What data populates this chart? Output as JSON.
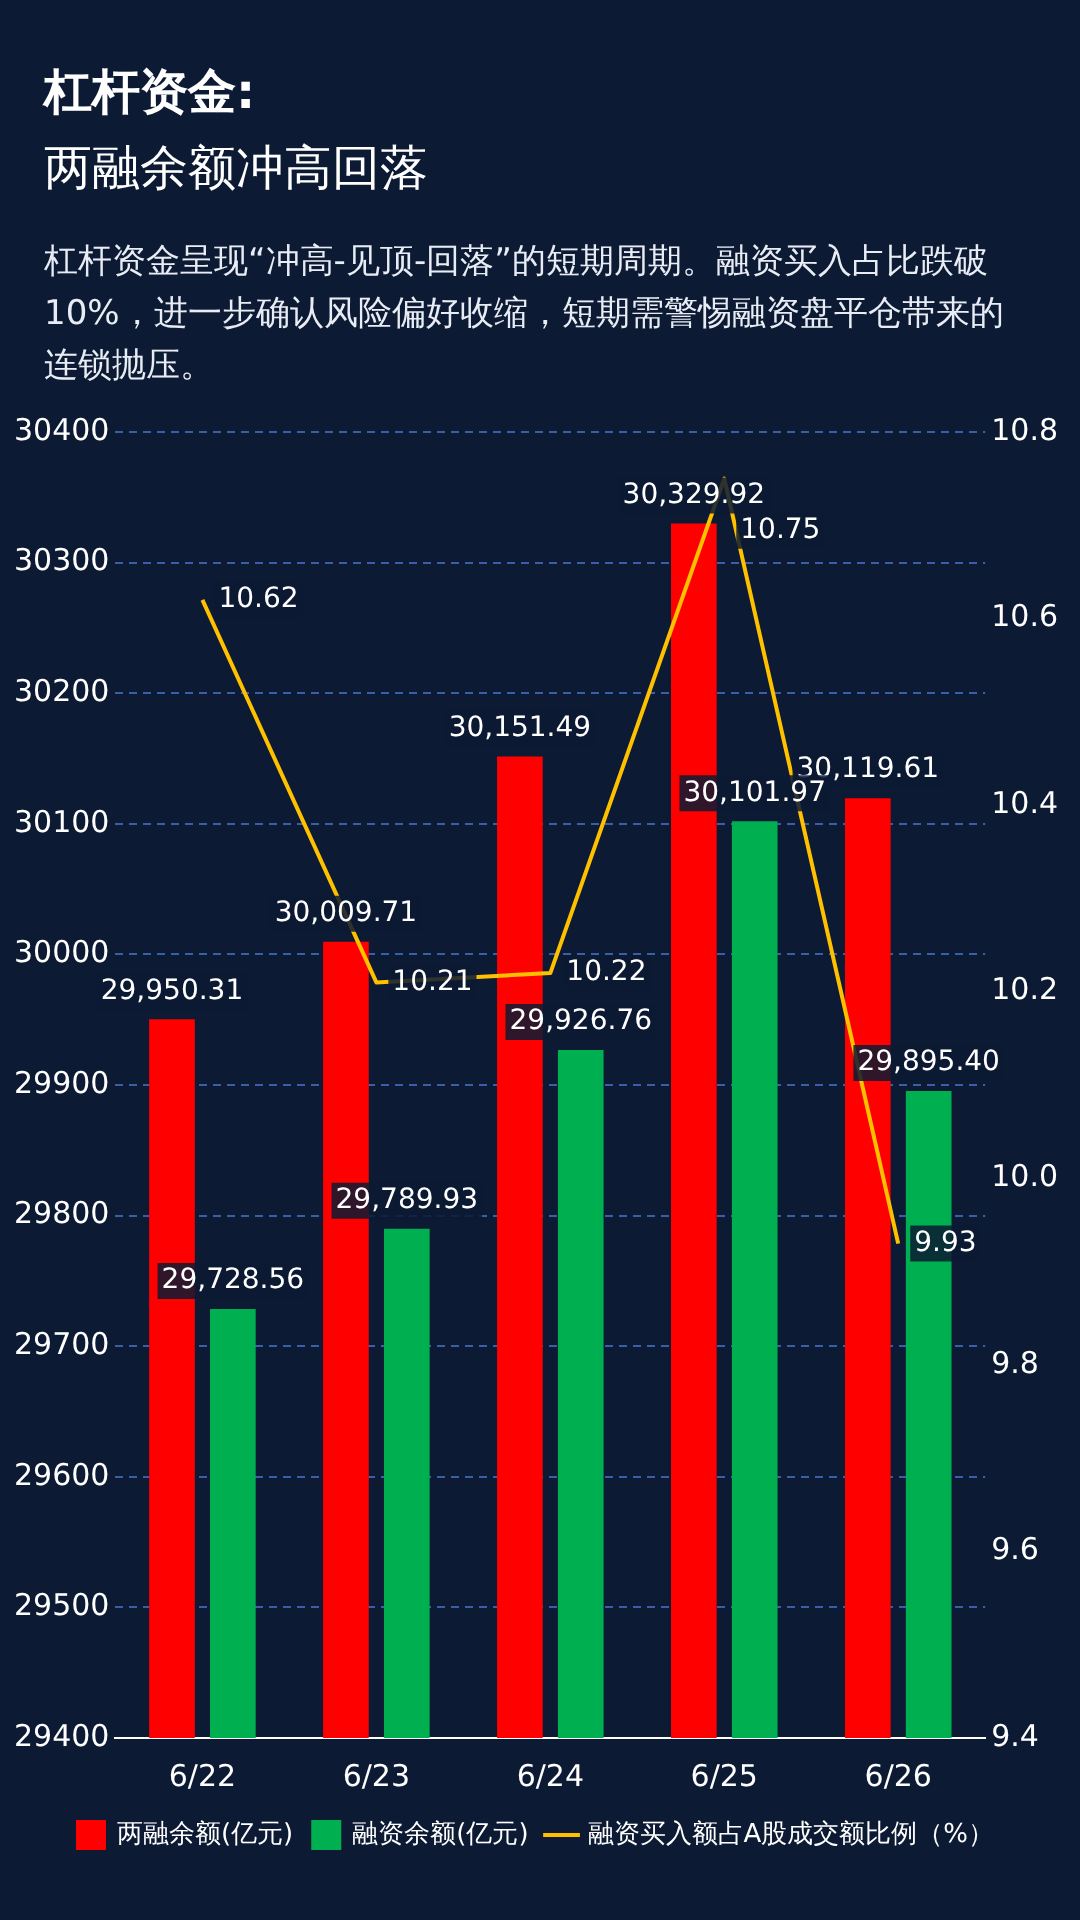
{
  "chart_data": {
    "type": "bar",
    "title": "杠杆资金:",
    "subtitle": "两融余额冲高回落",
    "annotations": [
      "杠杆资金呈现“冲高-见顶-回落”的短期周期。融资买入占比跌破10%，进一步确认风险偏好收缩，短期需警惕融资盘平仓带来的连锁抛压。"
    ],
    "categories": [
      "6/22",
      "6/23",
      "6/24",
      "6/25",
      "6/26"
    ],
    "series": [
      {
        "name": "两融余额(亿元)",
        "color": "#ff0000",
        "values": [
          29950.31,
          30009.71,
          30151.49,
          30329.92,
          30119.61
        ],
        "value_labels": [
          "29,950.31",
          "30,009.71",
          "30,151.49",
          "30,329.92",
          "30,119.61"
        ]
      },
      {
        "name": "融资余额(亿元)",
        "color": "#00b050",
        "values": [
          29728.56,
          29789.93,
          29926.76,
          30101.97,
          29895.4
        ],
        "value_labels": [
          "29,728.56",
          "29,789.93",
          "29,926.76",
          "30,101.97",
          "29,895.40"
        ]
      },
      {
        "name": "融资买入额占A股成交额比例（%）",
        "type": "line",
        "axis": "y2",
        "color": "#ffc000",
        "values": [
          10.62,
          10.21,
          10.22,
          10.75,
          9.93
        ],
        "value_labels": [
          "10.62",
          "10.21",
          "10.22",
          "10.75",
          "9.93"
        ]
      }
    ],
    "ylim": [
      29400,
      30400
    ],
    "yticks": [
      29400,
      29500,
      29600,
      29700,
      29800,
      29900,
      30000,
      30100,
      30200,
      30300,
      30400
    ],
    "y2lim": [
      9.4,
      10.8
    ],
    "y2ticks": [
      9.4,
      9.6,
      9.8,
      {
        "value": 10,
        "label": "10.0"
      },
      10.2,
      10.4,
      10.6,
      10.8
    ],
    "grid": "y",
    "legend": "bottom",
    "marker": "none",
    "line_style": "solid"
  }
}
